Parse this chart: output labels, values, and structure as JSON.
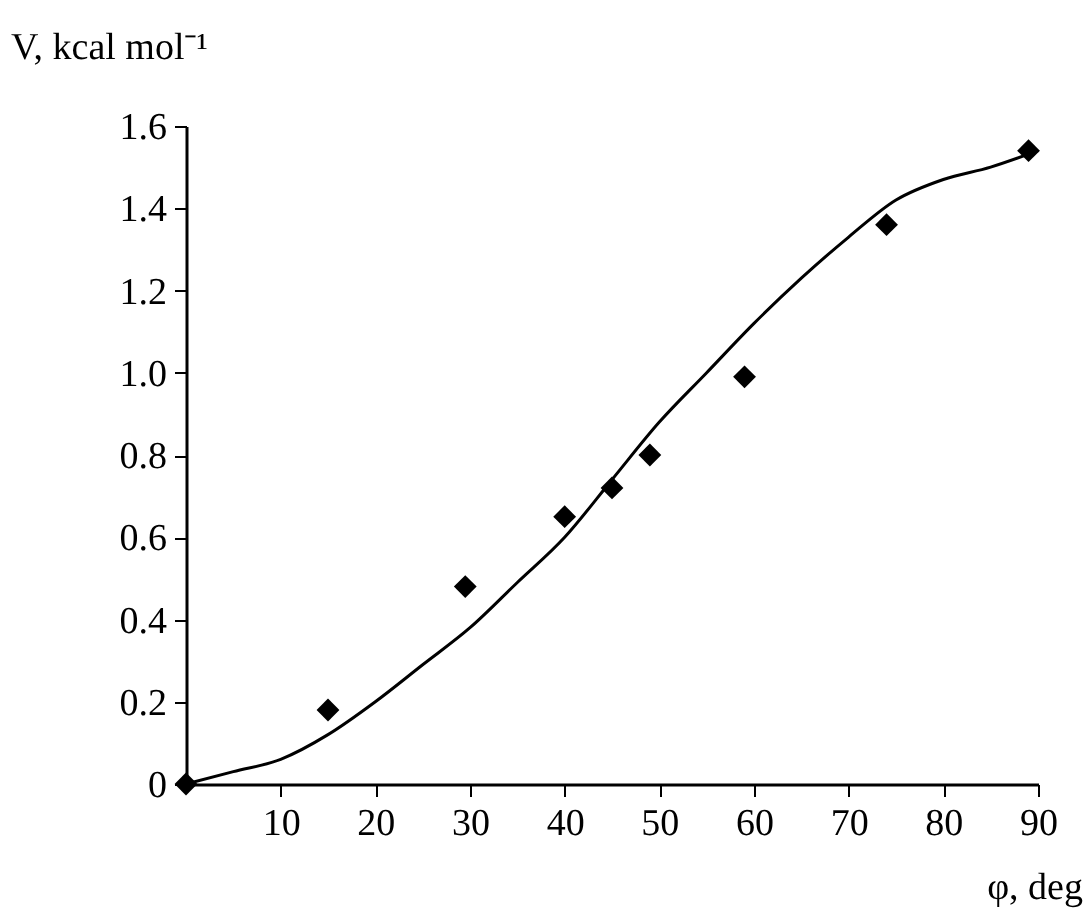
{
  "chart_data": {
    "type": "scatter",
    "xlabel": "φ, deg",
    "ylabel": "V, kcal mol⁻¹",
    "xlim": [
      0,
      90
    ],
    "xticks": [
      10,
      20,
      30,
      40,
      50,
      60,
      70,
      80,
      90
    ],
    "ylim": [
      0,
      1.6
    ],
    "yticks": [
      0,
      0.2,
      0.4,
      0.6,
      0.8,
      {
        "value": 1,
        "label": "1.0"
      },
      1.2,
      1.4,
      1.6
    ],
    "marker": "diamond",
    "grid": false,
    "series": [
      {
        "color": "#000000",
        "x": [
          0,
          15,
          29.5,
          40,
          45,
          49,
          59,
          74,
          89
        ],
        "values": [
          0,
          0.18,
          0.48,
          0.65,
          0.72,
          0.8,
          0.99,
          1.36,
          1.54
        ]
      },
      {
        "type": "line",
        "marker": "none",
        "color": "#000000",
        "x": [
          0,
          5,
          10,
          15,
          20,
          25,
          30,
          35,
          40,
          45,
          50,
          55,
          60,
          65,
          70,
          75,
          80,
          85,
          90
        ],
        "values": [
          0,
          0.03,
          0.06,
          0.12,
          0.2,
          0.29,
          0.38,
          0.49,
          0.6,
          0.74,
          0.88,
          1.0,
          1.12,
          1.23,
          1.33,
          1.42,
          1.47,
          1.5,
          1.54
        ]
      }
    ]
  }
}
